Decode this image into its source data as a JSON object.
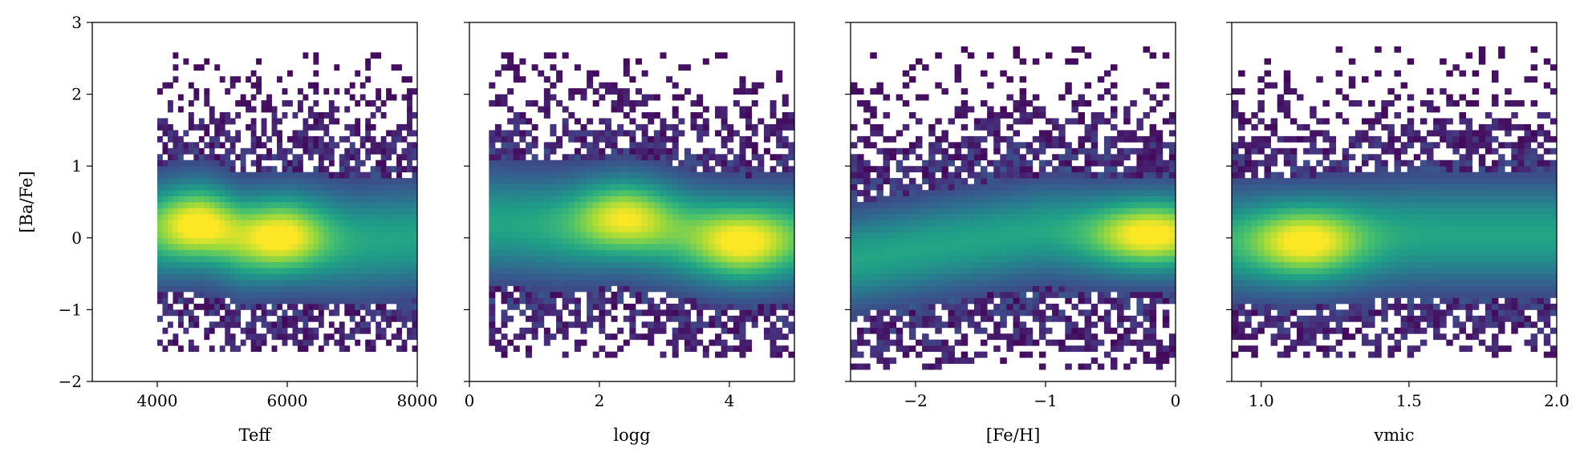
{
  "chart_data": [
    {
      "type": "heatmap",
      "xlabel": "Teff",
      "ylabel": "[Ba/Fe]",
      "xlim": [
        3000,
        8000
      ],
      "ylim": [
        -2,
        3
      ],
      "x_ticks": [
        {
          "v": 4000,
          "label": "4000"
        },
        {
          "v": 6000,
          "label": "6000"
        },
        {
          "v": 8000,
          "label": "8000"
        }
      ],
      "y_ticks": [
        {
          "v": -2,
          "label": "−2"
        },
        {
          "v": -1,
          "label": "−1"
        },
        {
          "v": 0,
          "label": "0"
        },
        {
          "v": 1,
          "label": "1"
        },
        {
          "v": 2,
          "label": "2"
        },
        {
          "v": 3,
          "label": "3"
        }
      ],
      "x_range": [
        4000,
        8000
      ],
      "x_bins": 50,
      "y_bins": 60,
      "ridge": [
        [
          4000,
          0.1
        ],
        [
          4700,
          0.15
        ],
        [
          5300,
          -0.05
        ],
        [
          6000,
          0.05
        ],
        [
          7000,
          -0.05
        ],
        [
          8000,
          0
        ]
      ],
      "clusters": [
        {
          "x": 4600,
          "y": 0.2,
          "w": 1.0
        },
        {
          "x": 5900,
          "y": 0.0,
          "w": 1.0
        }
      ],
      "spread_core": 0.5,
      "spread_outer": [
        -1.6,
        2.6
      ]
    },
    {
      "type": "heatmap",
      "xlabel": "logg",
      "ylabel": "",
      "xlim": [
        0,
        5
      ],
      "ylim": [
        -2,
        3
      ],
      "x_ticks": [
        {
          "v": 0,
          "label": "0"
        },
        {
          "v": 2,
          "label": "2"
        },
        {
          "v": 4,
          "label": "4"
        }
      ],
      "y_ticks": [],
      "x_range": [
        0.3,
        5.0
      ],
      "x_bins": 50,
      "y_bins": 60,
      "ridge": [
        [
          0.5,
          0.2
        ],
        [
          1.5,
          0.15
        ],
        [
          2.4,
          0.2
        ],
        [
          3.3,
          0.05
        ],
        [
          4.2,
          -0.05
        ],
        [
          4.9,
          0
        ]
      ],
      "clusters": [
        {
          "x": 2.4,
          "y": 0.3,
          "w": 0.9
        },
        {
          "x": 4.2,
          "y": -0.05,
          "w": 1.0
        }
      ],
      "spread_core": 0.5,
      "spread_outer": [
        -1.7,
        2.6
      ]
    },
    {
      "type": "heatmap",
      "xlabel": "[Fe/H]",
      "ylabel": "",
      "xlim": [
        -2.5,
        0
      ],
      "ylim": [
        -2,
        3
      ],
      "x_ticks": [
        {
          "v": -2,
          "label": "−2"
        },
        {
          "v": -1,
          "label": "−1"
        },
        {
          "v": 0,
          "label": "0"
        }
      ],
      "y_ticks": [],
      "x_range": [
        -2.5,
        0
      ],
      "x_bins": 50,
      "y_bins": 60,
      "ridge": [
        [
          -2.5,
          -0.3
        ],
        [
          -1.8,
          -0.1
        ],
        [
          -1.0,
          0.1
        ],
        [
          -0.4,
          0.05
        ],
        [
          0,
          0.05
        ]
      ],
      "clusters": [
        {
          "x": -0.2,
          "y": 0.05,
          "w": 1.0
        }
      ],
      "spread_core": 0.45,
      "spread_outer": [
        -1.8,
        2.7
      ]
    },
    {
      "type": "heatmap",
      "xlabel": "vmic",
      "ylabel": "",
      "xlim": [
        0.9,
        2.0
      ],
      "ylim": [
        -2,
        3
      ],
      "x_ticks": [
        {
          "v": 1.0,
          "label": "1.0"
        },
        {
          "v": 1.5,
          "label": "1.5"
        },
        {
          "v": 2.0,
          "label": "2.0"
        }
      ],
      "y_ticks": [],
      "x_range": [
        0.9,
        2.0
      ],
      "x_bins": 50,
      "y_bins": 60,
      "ridge": [
        [
          0.9,
          -0.05
        ],
        [
          1.15,
          -0.05
        ],
        [
          1.5,
          0.05
        ],
        [
          2.0,
          0.05
        ]
      ],
      "clusters": [
        {
          "x": 1.15,
          "y": -0.05,
          "w": 1.0
        }
      ],
      "spread_core": 0.5,
      "spread_outer": [
        -1.7,
        2.7
      ]
    }
  ],
  "colormap": [
    "#440154",
    "#46327e",
    "#365c8d",
    "#277f8e",
    "#1fa187",
    "#4ac16d",
    "#a0da39",
    "#fde725"
  ]
}
